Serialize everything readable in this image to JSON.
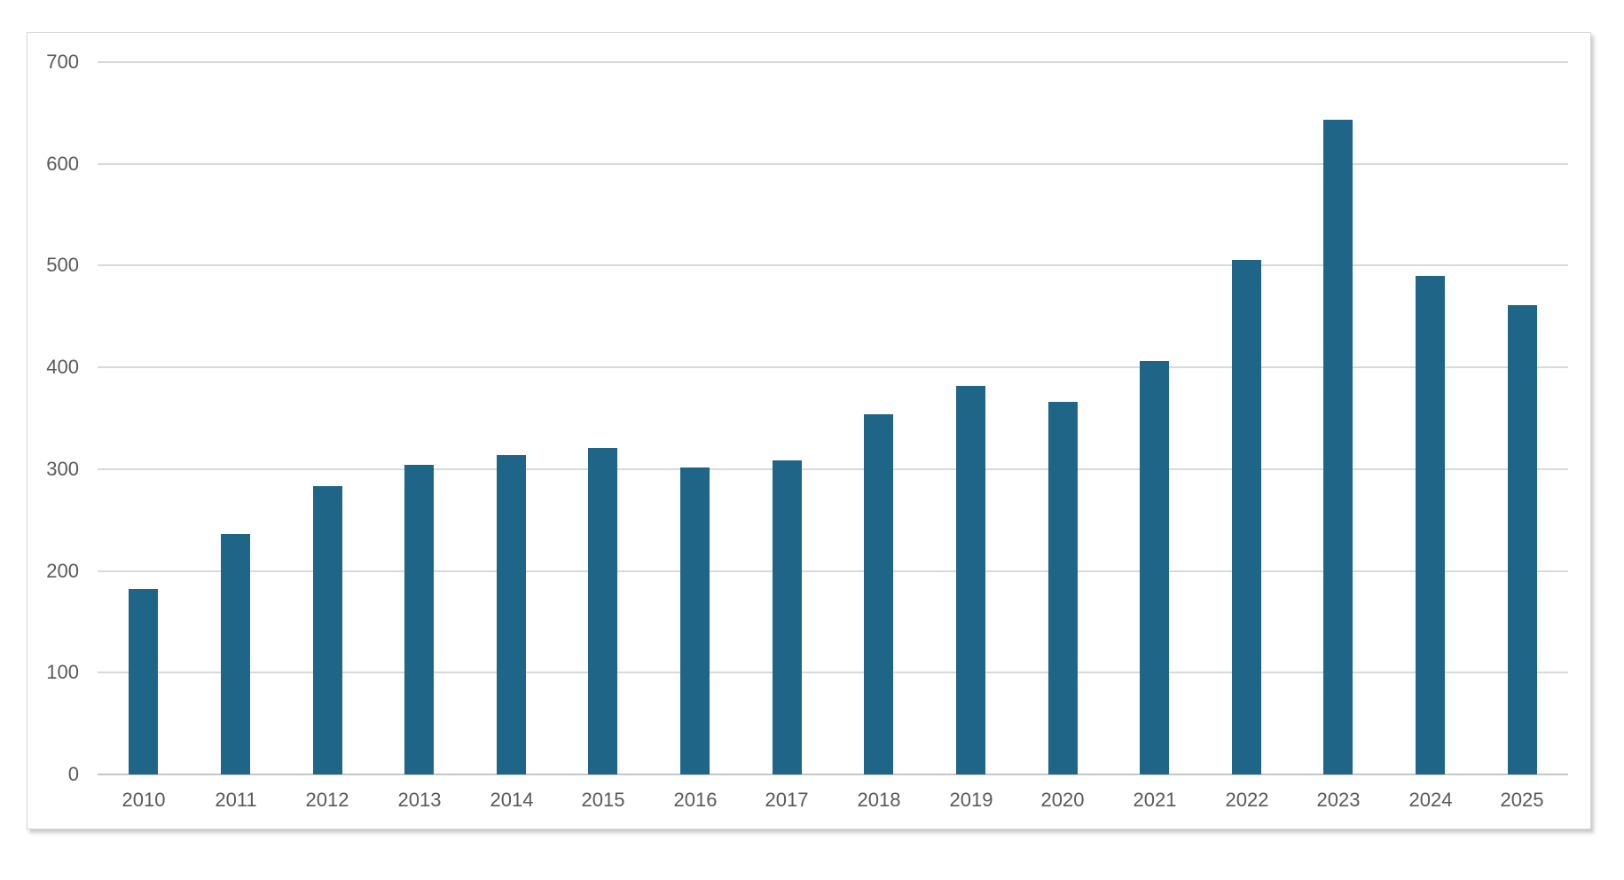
{
  "chart_data": {
    "type": "bar",
    "title": "",
    "xlabel": "",
    "ylabel": "",
    "categories": [
      "2010",
      "2011",
      "2012",
      "2013",
      "2014",
      "2015",
      "2016",
      "2017",
      "2018",
      "2019",
      "2020",
      "2021",
      "2022",
      "2023",
      "2024",
      "2025"
    ],
    "values": [
      182,
      236,
      283,
      304,
      314,
      321,
      302,
      309,
      354,
      382,
      366,
      406,
      506,
      643,
      490,
      461
    ],
    "ylim": [
      0,
      700
    ],
    "yticks": [
      0,
      100,
      200,
      300,
      400,
      500,
      600,
      700
    ],
    "grid": "horizontal",
    "legend_position": "none",
    "colors": {
      "bar": "#1F6587",
      "gridline": "#D9D9D9",
      "axis_line": "#C6C6C6",
      "label_text": "#595959",
      "frame_border": "#D6D4D4",
      "background": "#FFFFFF"
    }
  }
}
